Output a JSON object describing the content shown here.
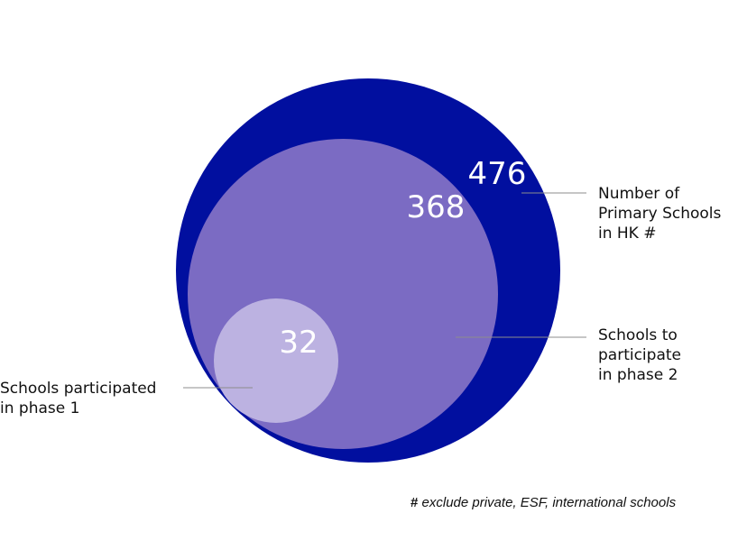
{
  "colors": {
    "outer": "#010f9f",
    "middle": "#7b6bc3",
    "inner": "#bcb2e1",
    "leader": "#8c8c8c",
    "text": "#111111"
  },
  "circles": {
    "outer": {
      "value": "476"
    },
    "middle": {
      "value": "368"
    },
    "inner": {
      "value": "32"
    }
  },
  "labels": {
    "outer": [
      "Number of",
      "Primary Schools",
      "in HK  #"
    ],
    "middle": [
      "Schools to",
      "participate",
      "in phase 2"
    ],
    "inner": [
      "Schools participated",
      "in phase 1"
    ]
  },
  "footnote": {
    "hash": "#",
    "text": "exclude private, ESF, international schools"
  }
}
